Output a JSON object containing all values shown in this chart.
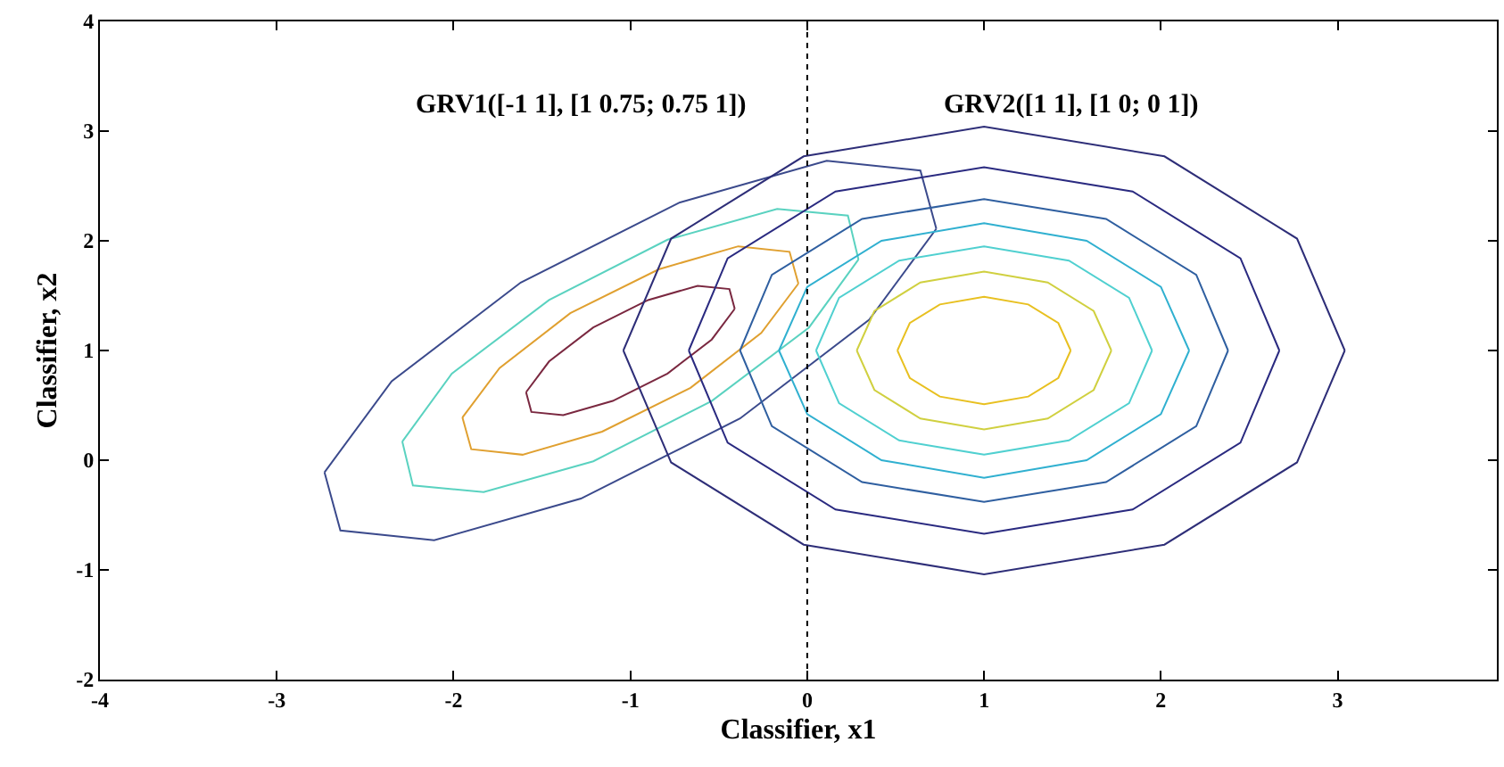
{
  "chart_data": {
    "type": "line",
    "xlabel": "Classifier, x1",
    "ylabel": "Classifier, x2",
    "annotations": [
      "GRV1([-1 1], [1 0.75; 0.75 1])",
      "GRV2([1 1], [1 0; 0 1])"
    ],
    "xlim": [
      -4,
      3.9
    ],
    "ylim": [
      -2,
      4
    ],
    "xticks": [
      -4,
      -3,
      -2,
      -1,
      0,
      1,
      2,
      3
    ],
    "yticks": [
      -2,
      -1,
      0,
      1,
      2,
      3,
      4
    ],
    "grid": false,
    "marker": "none",
    "line_style": "solid",
    "ref_lines": [
      {
        "axis": "x",
        "value": 0,
        "color": "#000000",
        "line_style": "dotted"
      }
    ],
    "series": [
      {
        "color": "#3b4a8c",
        "x": [
          -2.73,
          -2.35,
          -1.62,
          -0.72,
          0.11,
          0.64,
          0.73
        ],
        "values": [
          -0.11,
          0.72,
          1.62,
          2.35,
          2.73,
          2.64,
          2.11
        ]
      },
      {
        "color": "#3b4a8c",
        "x": [
          -2.73,
          -2.64,
          -2.11,
          -1.28,
          -0.38,
          0.35,
          0.73
        ],
        "values": [
          -0.11,
          -0.64,
          -0.73,
          -0.35,
          0.38,
          1.28,
          2.11
        ]
      },
      {
        "color": "#5ad2c0",
        "x": [
          -2.29,
          -2.01,
          -1.46,
          -0.79,
          -0.17,
          0.23,
          0.29
        ],
        "values": [
          0.17,
          0.79,
          1.46,
          2.01,
          2.29,
          2.23,
          1.83
        ]
      },
      {
        "color": "#5ad2c0",
        "x": [
          -2.29,
          -2.23,
          -1.83,
          -1.21,
          -0.54,
          0.01,
          0.29
        ],
        "values": [
          0.17,
          -0.23,
          -0.29,
          -0.01,
          0.54,
          1.21,
          1.83
        ]
      },
      {
        "color": "#e0a030",
        "x": [
          -1.95,
          -1.74,
          -1.34,
          -0.84,
          -0.39,
          -0.1,
          -0.05
        ],
        "values": [
          0.39,
          0.84,
          1.34,
          1.74,
          1.95,
          1.9,
          1.61
        ]
      },
      {
        "color": "#e0a030",
        "x": [
          -1.95,
          -1.9,
          -1.61,
          -1.16,
          -0.66,
          -0.26,
          -0.05
        ],
        "values": [
          0.39,
          0.1,
          0.05,
          0.26,
          0.66,
          1.16,
          1.61
        ]
      },
      {
        "color": "#7a2840",
        "x": [
          -1.59,
          -1.46,
          -1.21,
          -0.9,
          -0.62,
          -0.44,
          -0.41
        ],
        "values": [
          0.62,
          0.9,
          1.21,
          1.46,
          1.59,
          1.56,
          1.38
        ]
      },
      {
        "color": "#7a2840",
        "x": [
          -1.59,
          -1.56,
          -1.38,
          -1.1,
          -0.79,
          -0.54,
          -0.41
        ],
        "values": [
          0.62,
          0.44,
          0.41,
          0.54,
          0.79,
          1.1,
          1.38
        ]
      },
      {
        "color": "#2e2e78",
        "x": [
          -1.04,
          -0.77,
          -0.02,
          1,
          2.02,
          2.77,
          3.04
        ],
        "values": [
          1,
          2.02,
          2.77,
          3.04,
          2.77,
          2.02,
          1
        ]
      },
      {
        "color": "#2e2e78",
        "x": [
          -1.04,
          -0.77,
          -0.02,
          1,
          2.02,
          2.77,
          3.04
        ],
        "values": [
          1,
          -0.02,
          -0.77,
          -1.04,
          -0.77,
          -0.02,
          1
        ]
      },
      {
        "color": "#2a2a80",
        "x": [
          -0.67,
          -0.45,
          0.16,
          1,
          1.84,
          2.45,
          2.67
        ],
        "values": [
          1,
          1.84,
          2.45,
          2.67,
          2.45,
          1.84,
          1
        ]
      },
      {
        "color": "#2a2a80",
        "x": [
          -0.67,
          -0.45,
          0.16,
          1,
          1.84,
          2.45,
          2.67
        ],
        "values": [
          1,
          0.16,
          -0.45,
          -0.67,
          -0.45,
          0.16,
          1
        ]
      },
      {
        "color": "#2f5fa0",
        "x": [
          -0.38,
          -0.2,
          0.31,
          1,
          1.69,
          2.2,
          2.38
        ],
        "values": [
          1,
          1.69,
          2.2,
          2.38,
          2.2,
          1.69,
          1
        ]
      },
      {
        "color": "#2f5fa0",
        "x": [
          -0.38,
          -0.2,
          0.31,
          1,
          1.69,
          2.2,
          2.38
        ],
        "values": [
          1,
          0.31,
          -0.2,
          -0.38,
          -0.2,
          0.31,
          1
        ]
      },
      {
        "color": "#30b0d0",
        "x": [
          -0.16,
          0,
          0.42,
          1,
          1.58,
          2,
          2.16
        ],
        "values": [
          1,
          1.58,
          2,
          2.16,
          2,
          1.58,
          1
        ]
      },
      {
        "color": "#30b0d0",
        "x": [
          -0.16,
          0,
          0.42,
          1,
          1.58,
          2,
          2.16
        ],
        "values": [
          1,
          0.42,
          0,
          -0.16,
          0,
          0.42,
          1
        ]
      },
      {
        "color": "#50d0d0",
        "x": [
          0.05,
          0.18,
          0.52,
          1,
          1.48,
          1.82,
          1.95
        ],
        "values": [
          1,
          1.48,
          1.82,
          1.95,
          1.82,
          1.48,
          1
        ]
      },
      {
        "color": "#50d0d0",
        "x": [
          0.05,
          0.18,
          0.52,
          1,
          1.48,
          1.82,
          1.95
        ],
        "values": [
          1,
          0.52,
          0.18,
          0.05,
          0.18,
          0.52,
          1
        ]
      },
      {
        "color": "#d0d040",
        "x": [
          0.28,
          0.38,
          0.64,
          1,
          1.36,
          1.62,
          1.72
        ],
        "values": [
          1,
          1.36,
          1.62,
          1.72,
          1.62,
          1.36,
          1
        ]
      },
      {
        "color": "#d0d040",
        "x": [
          0.28,
          0.38,
          0.64,
          1,
          1.36,
          1.62,
          1.72
        ],
        "values": [
          1,
          0.64,
          0.38,
          0.28,
          0.38,
          0.64,
          1
        ]
      },
      {
        "color": "#e8c020",
        "x": [
          0.51,
          0.58,
          0.75,
          1,
          1.25,
          1.42,
          1.49
        ],
        "values": [
          1,
          1.25,
          1.42,
          1.49,
          1.42,
          1.25,
          1
        ]
      },
      {
        "color": "#e8c020",
        "x": [
          0.51,
          0.58,
          0.75,
          1,
          1.25,
          1.42,
          1.49
        ],
        "values": [
          1,
          0.75,
          0.58,
          0.51,
          0.58,
          0.75,
          1
        ]
      }
    ]
  }
}
